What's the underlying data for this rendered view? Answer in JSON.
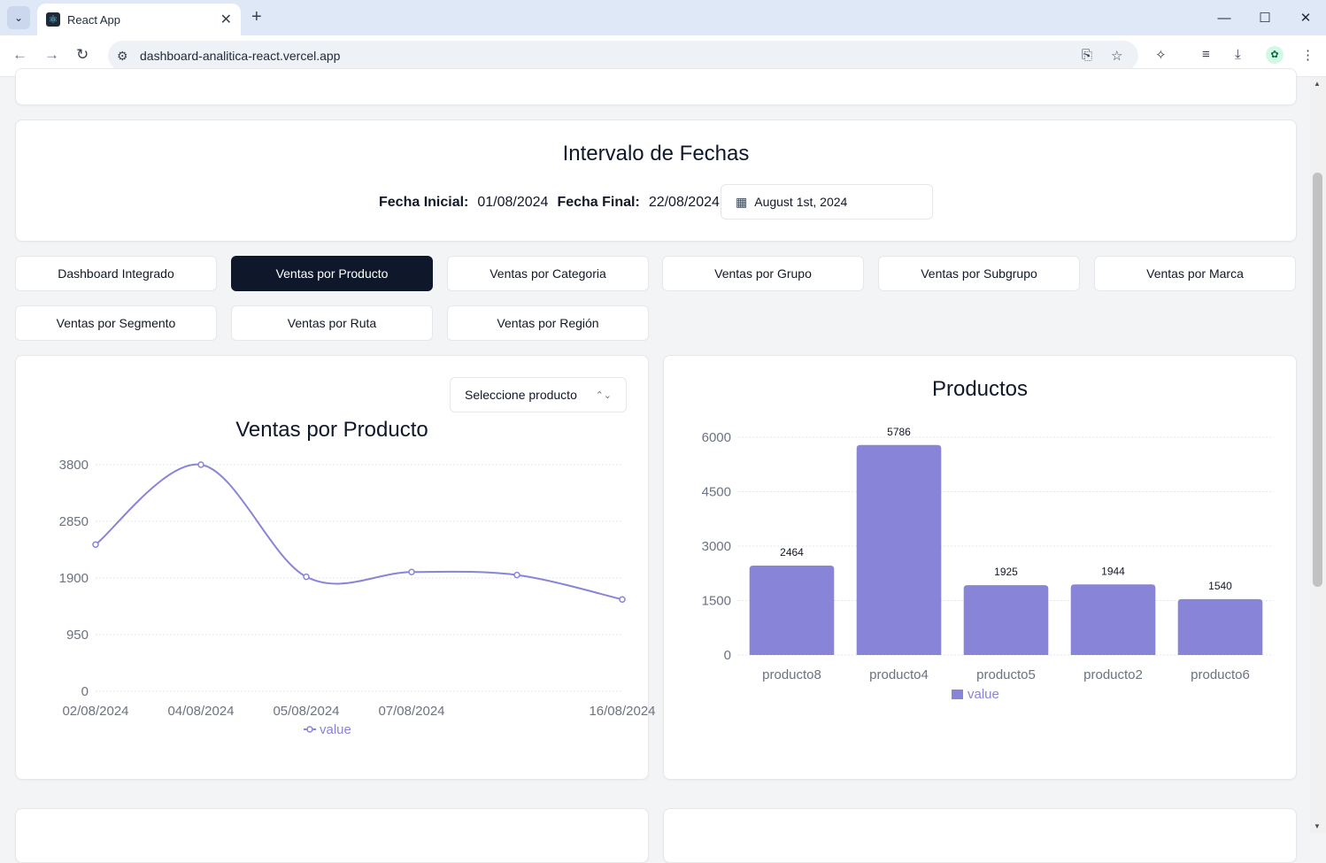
{
  "browser": {
    "tab_title": "React App",
    "url": "dashboard-analitica-react.vercel.app"
  },
  "date_card": {
    "title": "Intervalo de Fechas",
    "start_label": "Fecha Inicial:",
    "start_value": "01/08/2024",
    "end_label": "Fecha Final:",
    "end_value": "22/08/2024",
    "picker_value": "August 1st, 2024"
  },
  "nav_tabs": [
    {
      "label": "Dashboard Integrado",
      "active": false
    },
    {
      "label": "Ventas por Producto",
      "active": true
    },
    {
      "label": "Ventas por Categoria",
      "active": false
    },
    {
      "label": "Ventas por Grupo",
      "active": false
    },
    {
      "label": "Ventas por Subgrupo",
      "active": false
    },
    {
      "label": "Ventas por Marca",
      "active": false
    },
    {
      "label": "Ventas por Segmento",
      "active": false
    },
    {
      "label": "Ventas por Ruta",
      "active": false
    },
    {
      "label": "Ventas por Región",
      "active": false
    }
  ],
  "line_card": {
    "select_placeholder": "Seleccione producto"
  },
  "colors": {
    "series": "#8884d8",
    "active_tab": "#0f172a"
  },
  "chart_data": [
    {
      "type": "line",
      "title": "Ventas por Producto",
      "x": [
        "02/08/2024",
        "04/08/2024",
        "05/08/2024",
        "07/08/2024",
        "",
        "16/08/2024"
      ],
      "x_tick_labels": [
        "02/08/2024",
        "04/08/2024",
        "05/08/2024",
        "07/08/2024",
        "16/08/2024"
      ],
      "series": [
        {
          "name": "value",
          "values": [
            2460,
            3800,
            1920,
            2000,
            1950,
            1540
          ]
        }
      ],
      "y_ticks": [
        0,
        950,
        1900,
        2850,
        3800
      ],
      "ylim": [
        0,
        3800
      ],
      "grid": true,
      "legend": "bottom"
    },
    {
      "type": "bar",
      "title": "Productos",
      "categories": [
        "producto8",
        "producto4",
        "producto5",
        "producto2",
        "producto6"
      ],
      "series": [
        {
          "name": "value",
          "values": [
            2464,
            5786,
            1925,
            1944,
            1540
          ]
        }
      ],
      "y_ticks": [
        0,
        1500,
        3000,
        4500,
        6000
      ],
      "ylim": [
        0,
        6000
      ],
      "grid": true,
      "legend": "bottom"
    }
  ]
}
